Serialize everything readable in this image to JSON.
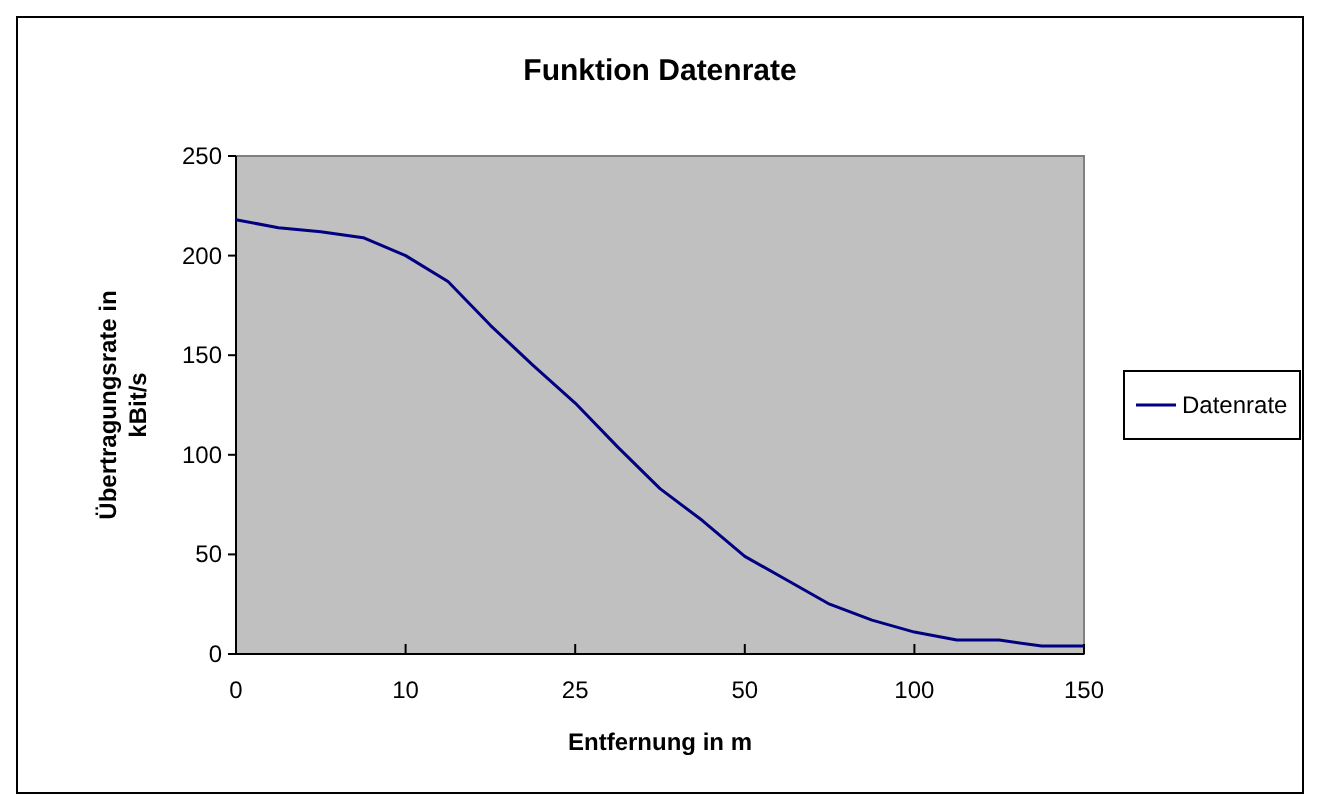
{
  "chart_data": {
    "type": "line",
    "title": "Funktion Datenrate",
    "xlabel": "Entfernung in m",
    "ylabel": "Übertragungsrate in kBit/s",
    "categories": [
      "0",
      null,
      null,
      null,
      "10",
      null,
      null,
      null,
      "25",
      null,
      null,
      null,
      "50",
      null,
      null,
      null,
      "100",
      null,
      null,
      null,
      "150"
    ],
    "series": [
      {
        "name": "Datenrate",
        "color": "#000080",
        "values": [
          218,
          214,
          212,
          209,
          200,
          187,
          165,
          145,
          126,
          104,
          83,
          67,
          49,
          37,
          25,
          17,
          11,
          7,
          7,
          4,
          4
        ]
      }
    ],
    "ylim": [
      0,
      250
    ],
    "yticks": [
      0,
      50,
      100,
      150,
      200,
      250
    ],
    "grid": false,
    "legend": "right",
    "marker": "none",
    "line_style": "solid"
  }
}
